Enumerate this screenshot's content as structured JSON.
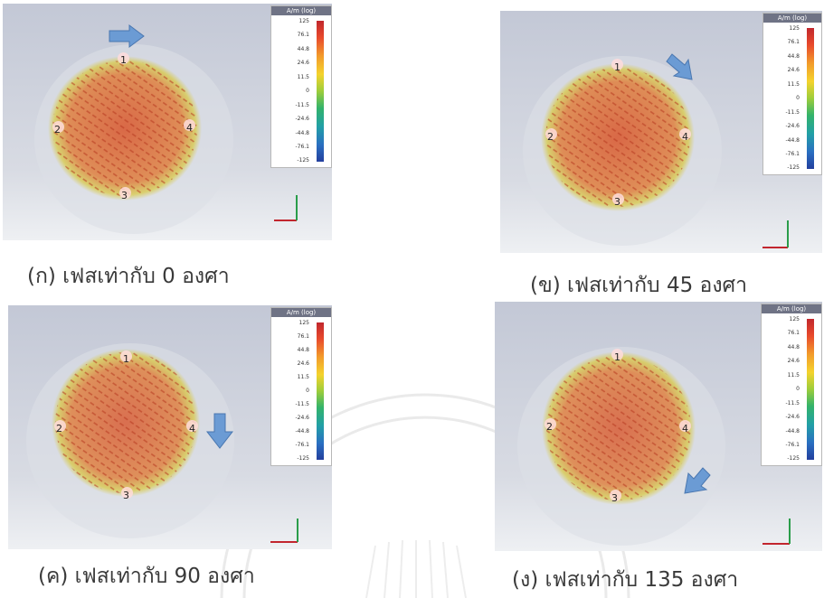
{
  "figures": [
    {
      "caption": "(ก) เฟสเท่ากับ 0 องศา",
      "arrow": "right-arrow-icon"
    },
    {
      "caption": "(ข) เฟสเท่ากับ 45 องศา",
      "arrow": "down-right-arrow-icon"
    },
    {
      "caption": "(ค) เฟสเท่ากับ 90 องศา",
      "arrow": "down-arrow-icon"
    },
    {
      "caption": "(ง) เฟสเท่ากับ 135 องศา",
      "arrow": "down-left-arrow-icon"
    }
  ],
  "legend": {
    "title": "A/m (log)",
    "ticks": [
      "125",
      "76.1",
      "44.8",
      "24.6",
      "11.5",
      "0",
      "-11.5",
      "-24.6",
      "-44.8",
      "-76.1",
      "-125"
    ]
  },
  "ports": [
    "1",
    "2",
    "3",
    "4"
  ],
  "colors": {
    "arrow": "#6b9bd4",
    "strong_field": "#d9542b",
    "weak_field": "#d8c83a"
  }
}
